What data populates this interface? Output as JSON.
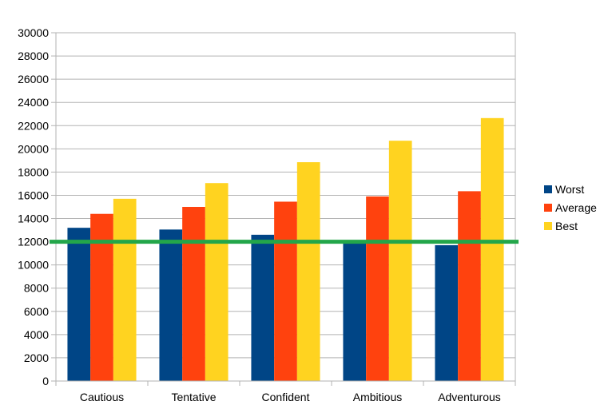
{
  "chart_data": {
    "type": "bar",
    "categories": [
      "Cautious",
      "Tentative",
      "Confident",
      "Ambitious",
      "Adventurous"
    ],
    "series": [
      {
        "name": "Worst",
        "color": "#004586",
        "values": [
          13200,
          13050,
          12600,
          12050,
          11700
        ]
      },
      {
        "name": "Average",
        "color": "#ff420e",
        "values": [
          14400,
          15000,
          15450,
          15900,
          16350
        ]
      },
      {
        "name": "Best",
        "color": "#ffd320",
        "values": [
          15700,
          17050,
          18850,
          20700,
          22650
        ]
      }
    ],
    "ylim": [
      0,
      30000
    ],
    "yticks": [
      0,
      2000,
      4000,
      6000,
      8000,
      10000,
      12000,
      14000,
      16000,
      18000,
      20000,
      22000,
      24000,
      26000,
      28000,
      30000
    ],
    "grid": true,
    "legend_position": "right",
    "reference_line": {
      "value": 12000,
      "color": "#23a64a"
    }
  }
}
